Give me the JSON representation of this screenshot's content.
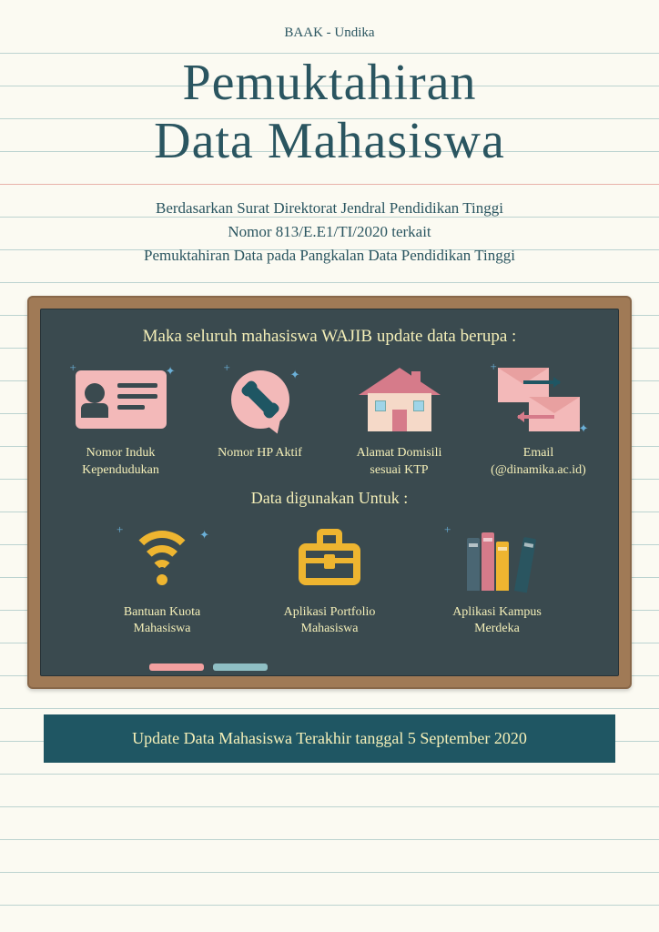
{
  "colors": {
    "paper_bg": "#fbfaf2",
    "line_blue": "#bcd3d0",
    "line_red": "#e8b1a9",
    "text_teal": "#2a5560",
    "board_frame": "#a07a56",
    "board_bg": "#3a4a4f",
    "chalk_text": "#f4efb8",
    "accent_pink": "#f3b9b9",
    "accent_yellow": "#eeb530",
    "banner_bg": "#1f5663",
    "chalk_pink": "#f3a0a0",
    "chalk_blue": "#8fbfc4"
  },
  "layout": {
    "paper_line_spacing": 36,
    "paper_line_start": 58,
    "red_line_index": 4
  },
  "header": {
    "org": "BAAK - Undika"
  },
  "title": {
    "line1": "Pemuktahiran",
    "line2": "Data Mahasiswa"
  },
  "subtitle": {
    "line1": "Berdasarkan Surat Direktorat Jendral Pendidikan Tinggi",
    "line2": "Nomor 813/E.E1/TI/2020 terkait",
    "line3": "Pemuktahiran Data pada Pangkalan Data Pendidikan Tinggi"
  },
  "board": {
    "heading1": "Maka seluruh mahasiswa WAJIB update data berupa :",
    "heading2": "Data digunakan Untuk :",
    "required_items": [
      {
        "label_l1": "Nomor Induk",
        "label_l2": "Kependudukan"
      },
      {
        "label_l1": "Nomor HP Aktif",
        "label_l2": ""
      },
      {
        "label_l1": "Alamat Domisili",
        "label_l2": "sesuai KTP"
      },
      {
        "label_l1": "Email",
        "label_l2": "(@dinamika.ac.id)"
      }
    ],
    "usage_items": [
      {
        "label_l1": "Bantuan Kuota",
        "label_l2": "Mahasiswa"
      },
      {
        "label_l1": "Aplikasi Portfolio",
        "label_l2": "Mahasiswa"
      },
      {
        "label_l1": "Aplikasi Kampus",
        "label_l2": "Merdeka"
      }
    ]
  },
  "footer": {
    "text": "Update Data Mahasiswa Terakhir tanggal 5 September 2020"
  }
}
